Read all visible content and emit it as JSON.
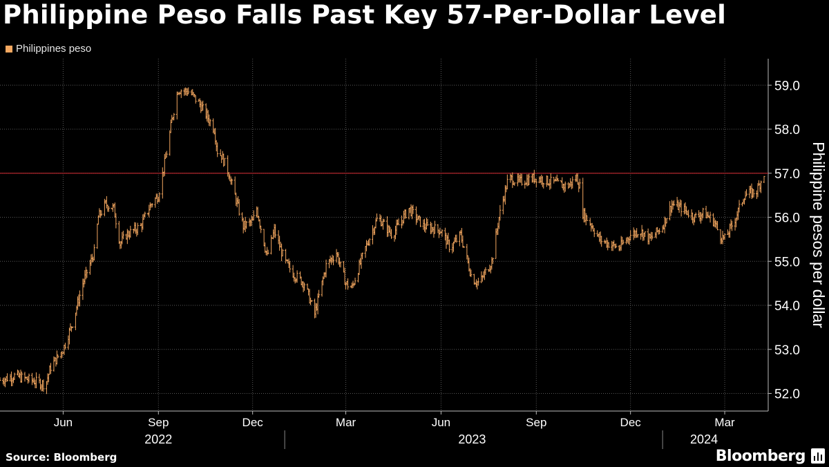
{
  "header": {
    "title": "Philippine Peso Falls Past Key 57-Per-Dollar Level"
  },
  "legend": {
    "label": "Philippines peso"
  },
  "footer": {
    "source": "Source: Bloomberg",
    "brand": "Bloomberg"
  },
  "colors": {
    "background": "#000000",
    "series": "#f5a860",
    "reference_line": "#b0242c",
    "grid": "#666666",
    "text": "#ffffff"
  },
  "chart_data": {
    "type": "line",
    "style": "ohlc",
    "title": "Philippine Peso Falls Past Key 57-Per-Dollar Level",
    "ylabel": "Philippine pesos per dollar",
    "xlabel": "",
    "ylim": [
      51.6,
      59.6
    ],
    "yticks": [
      52.0,
      53.0,
      54.0,
      55.0,
      56.0,
      57.0,
      58.0,
      59.0
    ],
    "ytick_labels": [
      "52.0",
      "53.0",
      "54.0",
      "55.0",
      "56.0",
      "57.0",
      "58.0",
      "59.0"
    ],
    "reference_line": {
      "y": 57.0
    },
    "x_range": [
      "2022-04-01",
      "2024-04-12"
    ],
    "month_ticks": [
      {
        "date": "2022-06-01",
        "label": "Jun"
      },
      {
        "date": "2022-09-01",
        "label": "Sep"
      },
      {
        "date": "2022-12-01",
        "label": "Dec"
      },
      {
        "date": "2023-03-01",
        "label": "Mar"
      },
      {
        "date": "2023-06-01",
        "label": "Jun"
      },
      {
        "date": "2023-09-01",
        "label": "Sep"
      },
      {
        "date": "2023-12-01",
        "label": "Dec"
      },
      {
        "date": "2024-03-01",
        "label": "Mar"
      }
    ],
    "year_labels": [
      {
        "center": "2022-09-01",
        "label": "2022"
      },
      {
        "center": "2023-07-01",
        "label": "2023"
      },
      {
        "center": "2024-02-10",
        "label": "2024"
      }
    ],
    "year_dividers": [
      "2023-01-01",
      "2024-01-01"
    ],
    "series": [
      {
        "name": "Philippines peso",
        "x": [
          "2022-04-01",
          "2022-04-15",
          "2022-05-01",
          "2022-05-15",
          "2022-05-20",
          "2022-06-01",
          "2022-06-10",
          "2022-06-20",
          "2022-07-01",
          "2022-07-05",
          "2022-07-12",
          "2022-07-20",
          "2022-07-26",
          "2022-08-01",
          "2022-08-15",
          "2022-08-25",
          "2022-09-01",
          "2022-09-06",
          "2022-09-10",
          "2022-09-14",
          "2022-09-20",
          "2022-10-01",
          "2022-10-10",
          "2022-10-18",
          "2022-10-25",
          "2022-10-28",
          "2022-11-01",
          "2022-11-08",
          "2022-11-15",
          "2022-11-22",
          "2022-12-01",
          "2022-12-05",
          "2022-12-15",
          "2022-12-22",
          "2023-01-01",
          "2023-01-10",
          "2023-01-20",
          "2023-01-30",
          "2023-02-10",
          "2023-02-20",
          "2023-03-01",
          "2023-03-07",
          "2023-03-20",
          "2023-04-01",
          "2023-04-15",
          "2023-05-01",
          "2023-05-15",
          "2023-06-01",
          "2023-06-10",
          "2023-06-20",
          "2023-07-01",
          "2023-07-08",
          "2023-07-20",
          "2023-07-27",
          "2023-08-01",
          "2023-08-05",
          "2023-08-15",
          "2023-09-01",
          "2023-09-15",
          "2023-10-01",
          "2023-10-10",
          "2023-10-13",
          "2023-10-16",
          "2023-10-25",
          "2023-11-01",
          "2023-11-10",
          "2023-11-20",
          "2023-12-01",
          "2023-12-10",
          "2023-12-20",
          "2024-01-01",
          "2024-01-10",
          "2024-01-20",
          "2024-02-01",
          "2024-02-10",
          "2024-02-20",
          "2024-02-25",
          "2024-03-01",
          "2024-03-10",
          "2024-03-20",
          "2024-04-01",
          "2024-04-08"
        ],
        "values": [
          52.3,
          52.4,
          52.3,
          52.2,
          52.6,
          53.0,
          53.6,
          54.5,
          55.2,
          56.0,
          56.3,
          56.2,
          55.4,
          55.6,
          55.8,
          56.3,
          56.5,
          57.1,
          57.6,
          58.2,
          58.9,
          58.85,
          58.6,
          58.3,
          58.0,
          57.5,
          57.4,
          57.0,
          56.4,
          55.8,
          55.9,
          56.2,
          55.1,
          55.7,
          55.0,
          54.7,
          54.5,
          53.8,
          54.9,
          55.2,
          54.5,
          54.4,
          55.3,
          56.0,
          55.6,
          56.2,
          55.8,
          55.7,
          55.3,
          55.6,
          54.6,
          54.5,
          55.0,
          56.0,
          56.5,
          56.9,
          56.8,
          56.9,
          56.8,
          56.7,
          56.9,
          56.7,
          56.1,
          55.8,
          55.5,
          55.4,
          55.3,
          55.6,
          55.7,
          55.5,
          55.8,
          56.3,
          56.2,
          56.0,
          56.1,
          55.9,
          55.6,
          55.5,
          55.9,
          56.5,
          56.6,
          57.0
        ]
      }
    ]
  }
}
